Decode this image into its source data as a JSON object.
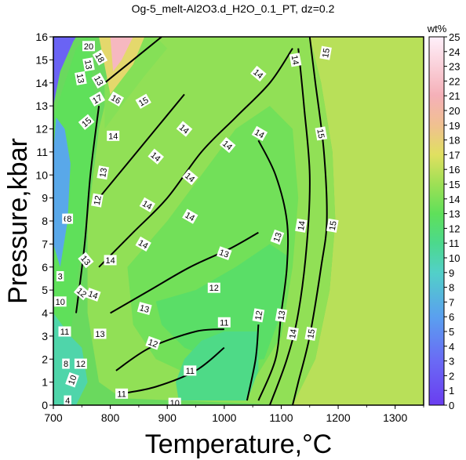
{
  "chart_data": {
    "type": "heatmap",
    "title": "Og-5_melt-Al2O3.d_H2O_0.1_PT, dz=0.2",
    "xlabel": "Temperature,°C",
    "ylabel": "Pressure,kbar",
    "xlim": [
      700,
      1350
    ],
    "ylim": [
      0,
      16
    ],
    "xticks": [
      "700",
      "800",
      "900",
      "1000",
      "1100",
      "1200",
      "1300"
    ],
    "yticks": [
      "0",
      "1",
      "2",
      "3",
      "4",
      "5",
      "6",
      "7",
      "8",
      "9",
      "10",
      "11",
      "12",
      "13",
      "14",
      "15",
      "16"
    ],
    "colorbar": {
      "unit": "wt%",
      "range": [
        0,
        25
      ],
      "ticks": [
        "0",
        "1",
        "2",
        "3",
        "4",
        "5",
        "6",
        "7",
        "8",
        "9",
        "10",
        "11",
        "12",
        "13",
        "14",
        "15",
        "16",
        "17",
        "18",
        "19",
        "20",
        "21",
        "22",
        "23",
        "24",
        "25"
      ],
      "stops": [
        {
          "value": 0,
          "color": "#6a3df0"
        },
        {
          "value": 3,
          "color": "#6a6af5"
        },
        {
          "value": 6,
          "color": "#5aa0ef"
        },
        {
          "value": 9,
          "color": "#52d0c8"
        },
        {
          "value": 11,
          "color": "#4cd98c"
        },
        {
          "value": 13,
          "color": "#5fe05a"
        },
        {
          "value": 15,
          "color": "#9ee055"
        },
        {
          "value": 17,
          "color": "#e0e060"
        },
        {
          "value": 19,
          "color": "#f0c090"
        },
        {
          "value": 21,
          "color": "#f5b0b8"
        },
        {
          "value": 25,
          "color": "#fff0fa"
        }
      ]
    },
    "regions": [
      {
        "value": 15.8,
        "points": [
          [
            1120,
            0
          ],
          [
            1350,
            0
          ],
          [
            1350,
            16
          ],
          [
            1150,
            16
          ],
          [
            1170,
            14
          ],
          [
            1190,
            11
          ],
          [
            1195,
            8
          ],
          [
            1185,
            5
          ],
          [
            1160,
            2
          ],
          [
            1130,
            0.5
          ]
        ]
      },
      {
        "value": 14.6,
        "points": [
          [
            820,
            0.3
          ],
          [
            1120,
            0
          ],
          [
            1160,
            2
          ],
          [
            1185,
            5
          ],
          [
            1195,
            8
          ],
          [
            1190,
            11
          ],
          [
            1170,
            14
          ],
          [
            1150,
            16
          ],
          [
            820,
            16
          ],
          [
            780,
            12
          ],
          [
            760,
            8
          ],
          [
            760,
            4
          ],
          [
            780,
            1
          ]
        ]
      },
      {
        "value": 13.6,
        "points": [
          [
            830,
            6
          ],
          [
            900,
            8
          ],
          [
            960,
            10
          ],
          [
            1020,
            12
          ],
          [
            1080,
            13
          ],
          [
            1120,
            12
          ],
          [
            1130,
            9
          ],
          [
            1120,
            6
          ],
          [
            1100,
            3
          ],
          [
            1050,
            1
          ],
          [
            950,
            1.2
          ],
          [
            880,
            2
          ],
          [
            840,
            3.5
          ]
        ]
      },
      {
        "value": 12.5,
        "points": [
          [
            880,
            4.5
          ],
          [
            950,
            5
          ],
          [
            1020,
            6
          ],
          [
            1080,
            7
          ],
          [
            1110,
            6.5
          ],
          [
            1100,
            4
          ],
          [
            1070,
            2
          ],
          [
            1000,
            1.8
          ],
          [
            930,
            2.5
          ],
          [
            890,
            3.5
          ]
        ]
      },
      {
        "value": 11.2,
        "points": [
          [
            920,
            0.2
          ],
          [
            1040,
            0.2
          ],
          [
            1060,
            1.5
          ],
          [
            1060,
            3.2
          ],
          [
            1000,
            3.2
          ],
          [
            960,
            2.8
          ],
          [
            930,
            2
          ],
          [
            915,
            1
          ]
        ]
      },
      {
        "value": 14.2,
        "points": [
          [
            790,
            12
          ],
          [
            820,
            13
          ],
          [
            860,
            14.3
          ],
          [
            900,
            15.5
          ],
          [
            880,
            16
          ],
          [
            820,
            16
          ],
          [
            790,
            14
          ]
        ]
      },
      {
        "value": 17.5,
        "points": [
          [
            780,
            16
          ],
          [
            860,
            16
          ],
          [
            840,
            14.8
          ],
          [
            800,
            13.5
          ]
        ]
      },
      {
        "value": 21.5,
        "points": [
          [
            800,
            16
          ],
          [
            840,
            16
          ],
          [
            820,
            15
          ],
          [
            805,
            14.5
          ]
        ]
      },
      {
        "value": 13.0,
        "points": [
          [
            700,
            12.5
          ],
          [
            720,
            14
          ],
          [
            740,
            15.5
          ],
          [
            760,
            16
          ],
          [
            775,
            13
          ],
          [
            770,
            11
          ],
          [
            760,
            9
          ],
          [
            750,
            7
          ],
          [
            740,
            5
          ],
          [
            730,
            3
          ],
          [
            700,
            2
          ]
        ]
      },
      {
        "value": 6.5,
        "points": [
          [
            700,
            7
          ],
          [
            712,
            6
          ],
          [
            725,
            8
          ],
          [
            730,
            10.5
          ],
          [
            720,
            12
          ],
          [
            705,
            12.5
          ],
          [
            700,
            11
          ]
        ]
      },
      {
        "value": 2.5,
        "points": [
          [
            700,
            13
          ],
          [
            712,
            14.5
          ],
          [
            735,
            15.8
          ],
          [
            740,
            16
          ],
          [
            700,
            16
          ]
        ]
      },
      {
        "value": 10.0,
        "points": [
          [
            700,
            0
          ],
          [
            740,
            0
          ],
          [
            760,
            1
          ],
          [
            750,
            2.5
          ],
          [
            730,
            3
          ],
          [
            700,
            4
          ]
        ]
      }
    ],
    "contours": [
      {
        "value": 15,
        "points": [
          [
            1120,
            0
          ],
          [
            1130,
            1
          ],
          [
            1150,
            3
          ],
          [
            1170,
            6
          ],
          [
            1180,
            8
          ],
          [
            1175,
            11
          ],
          [
            1160,
            14
          ],
          [
            1150,
            16
          ]
        ]
      },
      {
        "value": 14,
        "points": [
          [
            1080,
            0
          ],
          [
            1110,
            2
          ],
          [
            1130,
            4
          ],
          [
            1145,
            7
          ],
          [
            1150,
            10
          ],
          [
            1140,
            13
          ],
          [
            1130,
            15.5
          ]
        ]
      },
      {
        "value": 13,
        "points": [
          [
            1060,
            0.2
          ],
          [
            1090,
            2
          ],
          [
            1100,
            4
          ],
          [
            1110,
            6
          ],
          [
            1110,
            8
          ],
          [
            1090,
            10
          ],
          [
            1060,
            11.5
          ]
        ]
      },
      {
        "value": 12,
        "points": [
          [
            1040,
            0.2
          ],
          [
            1055,
            2
          ],
          [
            1060,
            3.5
          ]
        ]
      },
      {
        "value": 14,
        "points": [
          [
            780,
            6
          ],
          [
            840,
            7.5
          ],
          [
            900,
            9
          ],
          [
            960,
            11
          ],
          [
            1020,
            12.5
          ],
          [
            1080,
            14
          ],
          [
            1120,
            15.5
          ]
        ]
      },
      {
        "value": 14,
        "points": [
          [
            780,
            9
          ],
          [
            830,
            10.5
          ],
          [
            880,
            12
          ],
          [
            930,
            13.5
          ]
        ]
      },
      {
        "value": 13,
        "points": [
          [
            800,
            4
          ],
          [
            870,
            5
          ],
          [
            940,
            6
          ],
          [
            1010,
            6.8
          ],
          [
            1060,
            7.5
          ]
        ]
      },
      {
        "value": 12,
        "points": [
          [
            810,
            1.5
          ],
          [
            870,
            2.5
          ],
          [
            950,
            3.2
          ],
          [
            1000,
            3.3
          ]
        ]
      },
      {
        "value": 11,
        "points": [
          [
            820,
            0.5
          ],
          [
            880,
            0.8
          ],
          [
            950,
            1.5
          ],
          [
            1000,
            2.5
          ]
        ]
      },
      {
        "value": 16,
        "points": [
          [
            790,
            14
          ],
          [
            830,
            14.8
          ],
          [
            870,
            15.6
          ],
          [
            890,
            16
          ]
        ]
      },
      {
        "value": 13,
        "points": [
          [
            740,
            4
          ],
          [
            755,
            7
          ],
          [
            765,
            10
          ],
          [
            780,
            13
          ]
        ]
      }
    ],
    "labels": [
      {
        "text": "15",
        "x": 1190,
        "y": 7.8,
        "rot": -80
      },
      {
        "text": "15",
        "x": 1152,
        "y": 3.1,
        "rot": -80
      },
      {
        "text": "15",
        "x": 1170,
        "y": 11.8,
        "rot": 80
      },
      {
        "text": "15",
        "x": 1178,
        "y": 15.3,
        "rot": -80
      },
      {
        "text": "15",
        "x": 858,
        "y": 13.2,
        "rot": -30
      },
      {
        "text": "14",
        "x": 1135,
        "y": 7.8,
        "rot": -80
      },
      {
        "text": "14",
        "x": 1120,
        "y": 3.1,
        "rot": -80
      },
      {
        "text": "14",
        "x": 1125,
        "y": 15.0,
        "rot": 80
      },
      {
        "text": "14",
        "x": 1062,
        "y": 11.8,
        "rot": 30
      },
      {
        "text": "14",
        "x": 1060,
        "y": 14.4,
        "rot": 40
      },
      {
        "text": "14",
        "x": 1006,
        "y": 11.3,
        "rot": 40
      },
      {
        "text": "14",
        "x": 930,
        "y": 12.0,
        "rot": 40
      },
      {
        "text": "14",
        "x": 880,
        "y": 10.8,
        "rot": 40
      },
      {
        "text": "14",
        "x": 858,
        "y": 7.0,
        "rot": 30
      },
      {
        "text": "14",
        "x": 865,
        "y": 8.7,
        "rot": 30
      },
      {
        "text": "14",
        "x": 800,
        "y": 6.3,
        "rot": 0
      },
      {
        "text": "14",
        "x": 770,
        "y": 4.8,
        "rot": 20
      },
      {
        "text": "14",
        "x": 805,
        "y": 11.7,
        "rot": 0
      },
      {
        "text": "14",
        "x": 940,
        "y": 9.9,
        "rot": 40
      },
      {
        "text": "14",
        "x": 940,
        "y": 8.2,
        "rot": 30
      },
      {
        "text": "13",
        "x": 1093,
        "y": 7.3,
        "rot": -70
      },
      {
        "text": "13",
        "x": 1100,
        "y": 3.9,
        "rot": -80
      },
      {
        "text": "13",
        "x": 1000,
        "y": 6.6,
        "rot": 20
      },
      {
        "text": "13",
        "x": 860,
        "y": 4.2,
        "rot": 15
      },
      {
        "text": "13",
        "x": 782,
        "y": 3.1,
        "rot": 0
      },
      {
        "text": "13",
        "x": 787,
        "y": 10.1,
        "rot": -80
      },
      {
        "text": "13",
        "x": 757,
        "y": 6.3,
        "rot": 50
      },
      {
        "text": "13",
        "x": 780,
        "y": 14.1,
        "rot": 60
      },
      {
        "text": "12",
        "x": 1060,
        "y": 3.9,
        "rot": -80
      },
      {
        "text": "12",
        "x": 982,
        "y": 5.1,
        "rot": 0
      },
      {
        "text": "12",
        "x": 875,
        "y": 2.7,
        "rot": 20
      },
      {
        "text": "12",
        "x": 750,
        "y": 4.9,
        "rot": 40
      },
      {
        "text": "12",
        "x": 777,
        "y": 8.9,
        "rot": -80
      },
      {
        "text": "12",
        "x": 748,
        "y": 1.8,
        "rot": 0
      },
      {
        "text": "11",
        "x": 1000,
        "y": 3.6,
        "rot": 0
      },
      {
        "text": "11",
        "x": 940,
        "y": 1.5,
        "rot": 0
      },
      {
        "text": "11",
        "x": 820,
        "y": 0.5,
        "rot": 0
      },
      {
        "text": "11",
        "x": 720,
        "y": 3.2,
        "rot": 0
      },
      {
        "text": "10",
        "x": 913,
        "y": 0.1,
        "rot": 0
      },
      {
        "text": "10",
        "x": 712,
        "y": 4.5,
        "rot": 0
      },
      {
        "text": "10",
        "x": 733,
        "y": 1.1,
        "rot": -70
      },
      {
        "text": "16",
        "x": 810,
        "y": 13.3,
        "rot": 30
      },
      {
        "text": "17",
        "x": 777,
        "y": 13.3,
        "rot": -30
      },
      {
        "text": "18",
        "x": 782,
        "y": 15.1,
        "rot": 60
      },
      {
        "text": "20",
        "x": 762,
        "y": 15.6,
        "rot": 0
      },
      {
        "text": "13",
        "x": 762,
        "y": 14.8,
        "rot": 80
      },
      {
        "text": "15",
        "x": 758,
        "y": 12.3,
        "rot": -40
      },
      {
        "text": "13",
        "x": 748,
        "y": 14.2,
        "rot": 80
      },
      {
        "text": "3",
        "x": 712,
        "y": 5.6,
        "rot": 0
      },
      {
        "text": "4",
        "x": 725,
        "y": 0.2,
        "rot": 0
      },
      {
        "text": "8",
        "x": 722,
        "y": 1.8,
        "rot": 0
      },
      {
        "text": "6",
        "x": 722,
        "y": 8.1,
        "rot": 0
      },
      {
        "text": "8",
        "x": 728,
        "y": 8.1,
        "rot": 0
      }
    ]
  }
}
